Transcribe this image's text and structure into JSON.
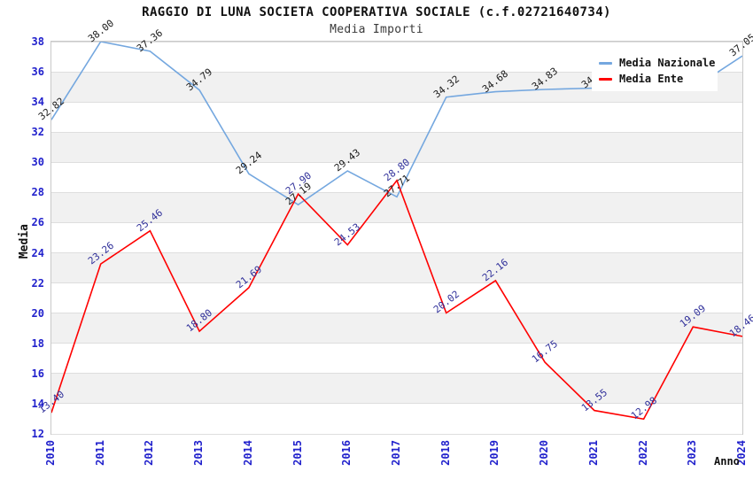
{
  "header": {
    "title": "RAGGIO DI LUNA SOCIETA COOPERATIVA SOCIALE (c.f.02721640734)",
    "subtitle": "Media Importi"
  },
  "chart_data": {
    "type": "line",
    "title": "RAGGIO DI LUNA SOCIETA COOPERATIVA SOCIALE (c.f.02721640734)",
    "subtitle": "Media Importi",
    "xlabel": "Anno",
    "ylabel": "Media",
    "x": [
      "2010",
      "2011",
      "2012",
      "2013",
      "2014",
      "2015",
      "2016",
      "2017",
      "2018",
      "2019",
      "2020",
      "2021",
      "2022",
      "2023",
      "2024"
    ],
    "ylim": [
      12,
      38
    ],
    "ytick_step": 2,
    "grid": "horizontal gridlines with alternating gray bands",
    "legend_position": "top-right overlay box",
    "point_labels": "each point labeled with value, rotated, two decimals",
    "series": [
      {
        "name": "Media Nazionale",
        "color": "#74a7df",
        "label_color": "#1a1a1a",
        "values": [
          32.82,
          38.0,
          37.36,
          34.79,
          29.24,
          27.19,
          29.43,
          27.71,
          34.32,
          34.68,
          34.83,
          34.92,
          34.8,
          34.9,
          37.05
        ],
        "note": "2021-2023 point labels are covered by the legend box; those values estimated from line position"
      },
      {
        "name": "Media Ente",
        "color": "#ff0000",
        "label_color": "#30309a",
        "values": [
          13.4,
          23.26,
          25.46,
          18.8,
          21.69,
          27.9,
          24.53,
          28.8,
          20.02,
          22.16,
          16.75,
          13.55,
          12.98,
          19.09,
          18.46
        ]
      }
    ],
    "style": {
      "tick_color": "#2121cc",
      "stripe_color": "#f1f1f1",
      "grid_color": "#dedede",
      "border_color": "#c9c9c9",
      "background": "#ffffff"
    }
  }
}
